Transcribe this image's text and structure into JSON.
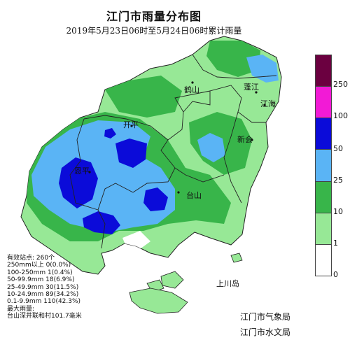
{
  "title": "江门市雨量分布图",
  "subtitle": "2019年5月23日06时至5月24日06时累计雨量",
  "places": {
    "heshan": "鹤山",
    "pengjiang": "蓬江",
    "jianghai": "江海",
    "kaiping": "开平",
    "xinhui": "新会",
    "enping": "恩平",
    "taishan": "台山",
    "shangchuan": "上川岛"
  },
  "legend": {
    "ticks": [
      "250",
      "100",
      "50",
      "25",
      "10",
      "1",
      "0"
    ],
    "colors": [
      "#6b0040",
      "#f21ad6",
      "#0b0bd9",
      "#5ab4f5",
      "#38b54a",
      "#97e896",
      "#ffffff"
    ]
  },
  "stats": {
    "total": "有效站点: 260个",
    "r250": "250mm以上 0(0.0%)",
    "r100": "100-250mm 1(0.4%)",
    "r50": "50-99.9mm 18(6.9%)",
    "r25": "25-49.9mm 30(11.5%)",
    "r10": "10-24.9mm 89(34.2%)",
    "r01": "0.1-9.9mm 110(42.3%)",
    "max_label": "最大雨量:",
    "max_value": "台山深井联和村101.7毫米"
  },
  "credits": {
    "met": "江门市气象局",
    "hydro": "江门市水文局"
  }
}
